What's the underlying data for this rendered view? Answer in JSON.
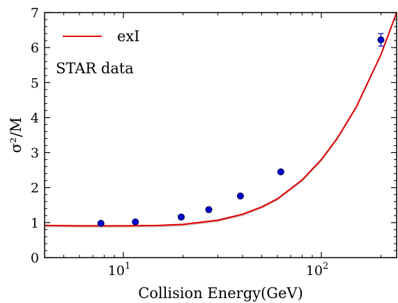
{
  "chart_data": {
    "type": "scatter",
    "xlabel": "Collision Energy(GeV)",
    "ylabel": "σ²/M",
    "xscale": "log",
    "xlim": [
      4,
      240
    ],
    "ylim": [
      0,
      7
    ],
    "y_ticks": [
      0,
      1,
      2,
      3,
      4,
      5,
      6,
      7
    ],
    "x_ticks": [
      {
        "value": 10,
        "base": "10",
        "exp": "1"
      },
      {
        "value": 100,
        "base": "10",
        "exp": "2"
      }
    ],
    "legend": {
      "position": "top-left",
      "entries": [
        {
          "label": "exI",
          "color": "#e00000"
        }
      ]
    },
    "annotation": "STAR data",
    "series": [
      {
        "name": "STAR data",
        "kind": "scatter",
        "color": "#0000cc",
        "x": [
          7.7,
          11.5,
          19.6,
          27,
          39,
          62.4,
          200
        ],
        "y": [
          0.98,
          1.02,
          1.16,
          1.37,
          1.76,
          2.45,
          6.22
        ],
        "yerr": [
          0.02,
          0.02,
          0.02,
          0.02,
          0.02,
          0.03,
          0.18
        ]
      },
      {
        "name": "exI",
        "kind": "line",
        "color": "#e00000",
        "band_color": "#f2a0a0",
        "x": [
          4,
          6,
          8,
          10,
          15,
          20,
          30,
          40,
          50,
          60,
          80,
          100,
          120,
          150,
          200,
          240
        ],
        "y": [
          0.92,
          0.91,
          0.91,
          0.91,
          0.92,
          0.95,
          1.07,
          1.24,
          1.45,
          1.68,
          2.22,
          2.8,
          3.4,
          4.3,
          5.8,
          7.0
        ],
        "band_y_low": [
          0.88,
          0.87,
          0.87,
          0.87,
          0.88,
          0.91,
          1.03,
          1.2,
          1.41,
          1.64,
          2.18,
          2.76,
          3.36,
          4.26,
          5.76,
          6.96
        ]
      }
    ]
  }
}
